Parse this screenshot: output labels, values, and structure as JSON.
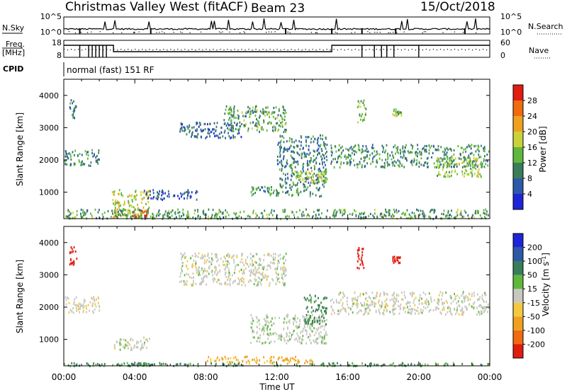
{
  "header": {
    "station": "Christmas Valley West (fitACF)",
    "beam": "Beam 23",
    "date": "15/Oct/2018"
  },
  "side_labels": {
    "nsky": "N.Sky",
    "freq": "Freq.",
    "freq_unit": "[MHz]",
    "cpid": "CPID",
    "nsearch": "N.Search",
    "nave": "Nave"
  },
  "noise_panel": {
    "left_ticks": [
      "10^5",
      "10^0"
    ],
    "right_ticks": [
      "10^5",
      "10^0"
    ]
  },
  "freq_panel": {
    "left_ticks": [
      "18",
      "8"
    ],
    "right_ticks": [
      "60",
      "0"
    ]
  },
  "cpid_text": "normal (fast) 151 RF",
  "x_axis": {
    "label": "Time UT",
    "ticks": [
      "00:00",
      "04:00",
      "08:00",
      "12:00",
      "16:00",
      "20:00",
      "00:00"
    ]
  },
  "power_panel": {
    "ylabel": "Slant Range [km]",
    "yticks": [
      "1000",
      "2000",
      "3000",
      "4000"
    ],
    "colorbar_label": "Power [dB]",
    "colorbar_ticks": [
      "4",
      "8",
      "12",
      "16",
      "20",
      "24",
      "28"
    ],
    "colors": [
      "#1f24d6",
      "#2c5aa8",
      "#3a7d5a",
      "#5fb83c",
      "#c9d23a",
      "#f0a020",
      "#f06a10",
      "#e11c10"
    ]
  },
  "velocity_panel": {
    "ylabel": "Slant Range [km]",
    "yticks": [
      "1000",
      "2000",
      "3000",
      "4000"
    ],
    "colorbar_label": "Velocity [m s",
    "colorbar_label_sup": "-1",
    "colorbar_label_end": "]",
    "colorbar_ticks": [
      "-200",
      "-100",
      "-50",
      "-15",
      "15",
      "50",
      "100",
      "200"
    ],
    "colors": [
      "#e11c10",
      "#f06a10",
      "#f0a020",
      "#f5c842",
      "#c8c8c0",
      "#5fb83c",
      "#3a7d5a",
      "#2c5aa8",
      "#1f24d6"
    ]
  },
  "chart_data": [
    {
      "type": "heatmap",
      "title": "",
      "xlabel": "Time UT",
      "ylabel": "Slant Range [km]",
      "xlim": [
        0,
        24
      ],
      "ylim": [
        180,
        4500
      ],
      "colorbar": "Power [dB]",
      "clim": [
        0,
        30
      ],
      "echo_regions": [
        {
          "t": [
            0.0,
            2.0
          ],
          "range": [
            1850,
            2350
          ],
          "value": 10
        },
        {
          "t": [
            0.3,
            0.7
          ],
          "range": [
            3300,
            3900
          ],
          "value": 8
        },
        {
          "t": [
            2.7,
            4.8
          ],
          "range": [
            220,
            1100
          ],
          "value": 18
        },
        {
          "t": [
            3.8,
            4.8
          ],
          "range": [
            200,
            500
          ],
          "value": 26
        },
        {
          "t": [
            4.5,
            7.5
          ],
          "range": [
            800,
            1100
          ],
          "value": 6
        },
        {
          "t": [
            6.5,
            10.0
          ],
          "range": [
            2700,
            3200
          ],
          "value": 7
        },
        {
          "t": [
            9.0,
            12.5
          ],
          "range": [
            2900,
            3700
          ],
          "value": 12
        },
        {
          "t": [
            10.5,
            14.5
          ],
          "range": [
            900,
            1200
          ],
          "value": 10
        },
        {
          "t": [
            12.0,
            14.8
          ],
          "range": [
            1200,
            2800
          ],
          "value": 9
        },
        {
          "t": [
            13.0,
            14.8
          ],
          "range": [
            1300,
            1700
          ],
          "value": 18
        },
        {
          "t": [
            15.0,
            24.0
          ],
          "range": [
            1800,
            2500
          ],
          "value": 11
        },
        {
          "t": [
            21.0,
            23.5
          ],
          "range": [
            1500,
            2100
          ],
          "value": 16
        },
        {
          "t": [
            16.5,
            17.0
          ],
          "range": [
            3200,
            3900
          ],
          "value": 14
        },
        {
          "t": [
            18.5,
            19.0
          ],
          "range": [
            3400,
            3600
          ],
          "value": 16
        },
        {
          "t": [
            0.0,
            24.0
          ],
          "range": [
            200,
            500
          ],
          "value": 12
        }
      ]
    },
    {
      "type": "heatmap",
      "title": "",
      "xlabel": "Time UT",
      "ylabel": "Slant Range [km]",
      "xlim": [
        0,
        24
      ],
      "ylim": [
        180,
        4500
      ],
      "colorbar": "Velocity [m s-1]",
      "clim": [
        -250,
        250
      ],
      "echo_regions": [
        {
          "t": [
            0.0,
            2.0
          ],
          "range": [
            1850,
            2350
          ],
          "value": -5
        },
        {
          "t": [
            0.3,
            0.7
          ],
          "range": [
            3300,
            3900
          ],
          "value": -250
        },
        {
          "t": [
            2.7,
            4.8
          ],
          "range": [
            700,
            1100
          ],
          "value": 0
        },
        {
          "t": [
            3.0,
            6.0
          ],
          "range": [
            200,
            300
          ],
          "value": 60
        },
        {
          "t": [
            6.5,
            12.5
          ],
          "range": [
            2700,
            3700
          ],
          "value": 0
        },
        {
          "t": [
            10.5,
            14.8
          ],
          "range": [
            900,
            1800
          ],
          "value": 5
        },
        {
          "t": [
            13.5,
            14.8
          ],
          "range": [
            1500,
            2400
          ],
          "value": 60
        },
        {
          "t": [
            8.0,
            14.0
          ],
          "range": [
            280,
            500
          ],
          "value": -60
        },
        {
          "t": [
            15.0,
            24.0
          ],
          "range": [
            1800,
            2500
          ],
          "value": 0
        },
        {
          "t": [
            16.5,
            17.0
          ],
          "range": [
            3200,
            3900
          ],
          "value": -250
        },
        {
          "t": [
            18.5,
            19.0
          ],
          "range": [
            3400,
            3600
          ],
          "value": -250
        },
        {
          "t": [
            0.0,
            24.0
          ],
          "range": [
            200,
            300
          ],
          "value": 55
        }
      ]
    }
  ]
}
